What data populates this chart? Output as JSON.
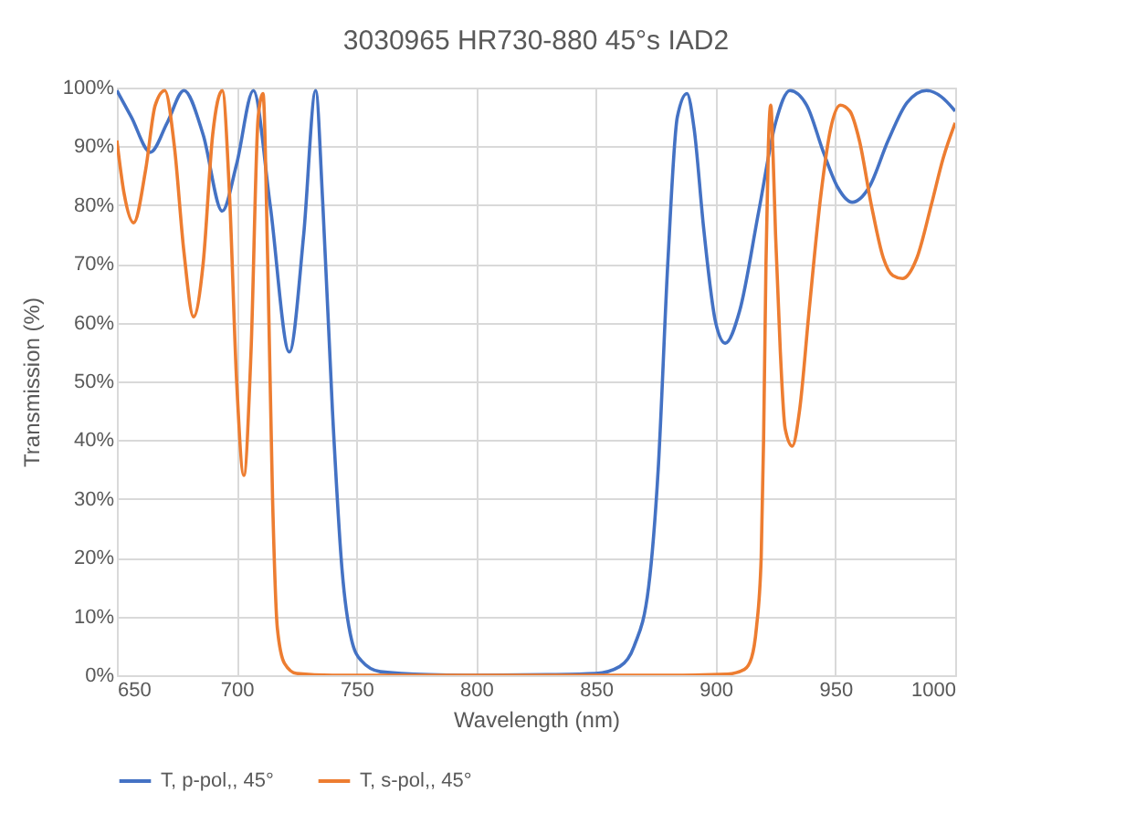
{
  "chart_data": {
    "type": "line",
    "title": "3030965 HR730-880 45°s IAD2",
    "xlabel": "Wavelength (nm)",
    "ylabel": "Transmission (%)",
    "xlim": [
      650,
      1000
    ],
    "xticks": [
      650,
      700,
      750,
      800,
      850,
      900,
      950,
      1000
    ],
    "ylim": [
      0,
      100
    ],
    "yticks": [
      {
        "value": 0,
        "label": "0%"
      },
      {
        "value": 10,
        "label": "10%"
      },
      {
        "value": 20,
        "label": "20%"
      },
      {
        "value": 30,
        "label": "30%"
      },
      {
        "value": 40,
        "label": "40%"
      },
      {
        "value": 50,
        "label": "50%"
      },
      {
        "value": 60,
        "label": "60%"
      },
      {
        "value": 70,
        "label": "70%"
      },
      {
        "value": 80,
        "label": "80%"
      },
      {
        "value": 90,
        "label": "90%"
      },
      {
        "value": 100,
        "label": "100%"
      }
    ],
    "grid": true,
    "legend": "bottom",
    "marker": "none",
    "line_style": "solid",
    "series": [
      {
        "name": "T, p-pol,, 45°",
        "color": "#4472c4",
        "x": [
          650,
          656,
          664,
          671,
          678,
          686,
          694,
          700,
          707,
          714,
          722,
          728,
          733,
          736,
          740,
          744,
          748,
          752,
          760,
          780,
          800,
          830,
          850,
          860,
          866,
          872,
          876,
          880,
          884,
          888,
          891,
          895,
          900,
          904,
          910,
          918,
          925,
          931,
          938,
          945,
          951,
          957,
          964,
          972,
          980,
          988,
          994,
          1000
        ],
        "values": [
          99.5,
          95,
          89,
          94,
          99.5,
          92,
          79,
          87,
          99.5,
          80,
          55,
          75,
          99.5,
          80,
          45,
          18,
          6,
          2.5,
          0.6,
          0.1,
          0,
          0.1,
          0.3,
          1.5,
          5,
          15,
          35,
          70,
          95,
          99,
          93,
          76,
          60,
          56.5,
          62,
          79,
          94,
          99.5,
          97,
          89,
          83,
          80.5,
          83,
          91,
          97.5,
          99.5,
          98.5,
          96
        ]
      },
      {
        "name": "T, s-pol,, 45°",
        "color": "#ed7d31",
        "x": [
          650,
          653,
          657,
          662,
          666,
          670,
          674,
          678,
          682,
          686,
          690,
          694,
          697,
          700,
          703,
          706,
          709,
          711,
          713,
          715,
          717,
          720,
          725,
          740,
          800,
          880,
          905,
          912,
          915,
          917,
          919,
          920,
          921,
          922,
          923,
          924,
          925,
          927,
          929,
          932,
          935,
          939,
          944,
          948,
          952,
          956,
          960,
          965,
          970,
          974,
          978,
          984,
          990,
          995,
          1000
        ],
        "values": [
          91,
          82,
          77,
          86,
          97,
          99.5,
          90,
          72,
          61,
          70,
          92,
          99.5,
          82,
          50,
          34,
          55,
          95,
          99,
          70,
          30,
          8,
          2,
          0.3,
          0,
          0,
          0,
          0.2,
          1,
          3,
          8,
          20,
          40,
          70,
          90,
          97,
          88,
          75,
          55,
          42,
          39,
          45,
          62,
          82,
          93,
          97,
          96,
          91,
          80,
          71,
          68,
          67.5,
          71,
          80,
          88,
          94
        ]
      }
    ]
  }
}
